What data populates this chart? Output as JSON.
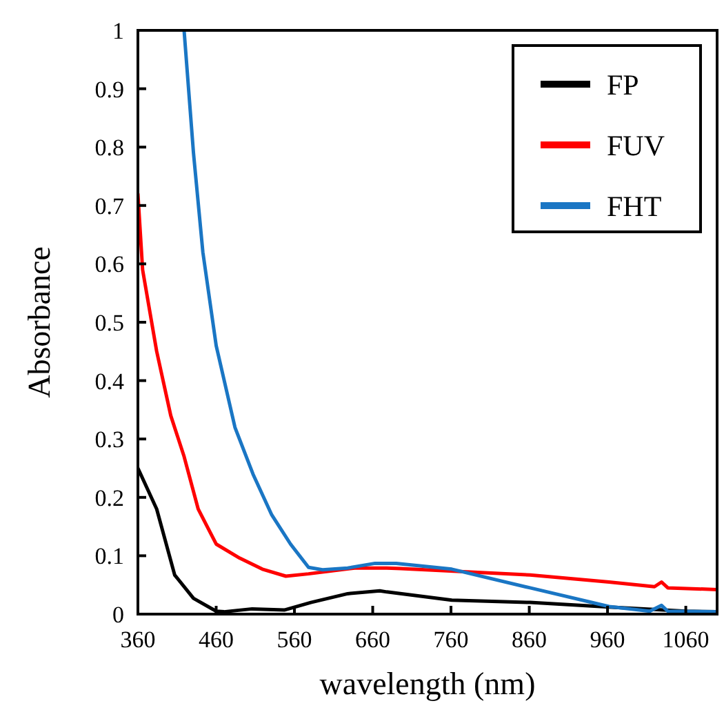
{
  "chart_data": {
    "type": "line",
    "xlabel": "wavelength  (nm)",
    "ylabel": "Absorbance",
    "xlim": [
      360,
      1100
    ],
    "ylim": [
      0,
      1
    ],
    "xticks": [
      360,
      460,
      560,
      660,
      760,
      860,
      960,
      1060
    ],
    "yticks": [
      0,
      0.1,
      0.2,
      0.3,
      0.4,
      0.5,
      0.6,
      0.7,
      0.8,
      0.9,
      1
    ],
    "grid": false,
    "legend": "top right",
    "marker": "none",
    "line_style": "solid",
    "series": [
      {
        "name": "FP",
        "color": "#000000",
        "x": [
          360,
          384,
          407,
          431,
          460,
          470,
          506,
          547,
          581,
          628,
          669,
          678,
          761,
          861,
          962,
          1060,
          1100
        ],
        "values": [
          0.25,
          0.18,
          0.067,
          0.027,
          0.005,
          0.004,
          0.009,
          0.007,
          0.02,
          0.035,
          0.04,
          0.038,
          0.024,
          0.02,
          0.012,
          0.005,
          0.004
        ]
      },
      {
        "name": "FUV",
        "color": "#ff0000",
        "x": [
          360,
          366,
          384,
          402,
          419,
          437,
          460,
          490,
          519,
          549,
          578,
          637,
          678,
          696,
          861,
          962,
          1020,
          1029,
          1037,
          1100
        ],
        "values": [
          0.72,
          0.59,
          0.45,
          0.34,
          0.27,
          0.18,
          0.12,
          0.096,
          0.077,
          0.065,
          0.069,
          0.079,
          0.079,
          0.078,
          0.067,
          0.055,
          0.047,
          0.055,
          0.045,
          0.042
        ]
      },
      {
        "name": "FHT",
        "color": "#1a76c4",
        "x": [
          419,
          431,
          443,
          460,
          484,
          507,
          531,
          555,
          578,
          596,
          628,
          663,
          690,
          761,
          861,
          962,
          1014,
          1029,
          1037,
          1100
        ],
        "values": [
          1,
          0.79,
          0.62,
          0.46,
          0.32,
          0.24,
          0.17,
          0.12,
          0.08,
          0.076,
          0.079,
          0.087,
          0.087,
          0.077,
          0.045,
          0.013,
          0.005,
          0.015,
          0.005,
          0.004
        ]
      }
    ]
  }
}
